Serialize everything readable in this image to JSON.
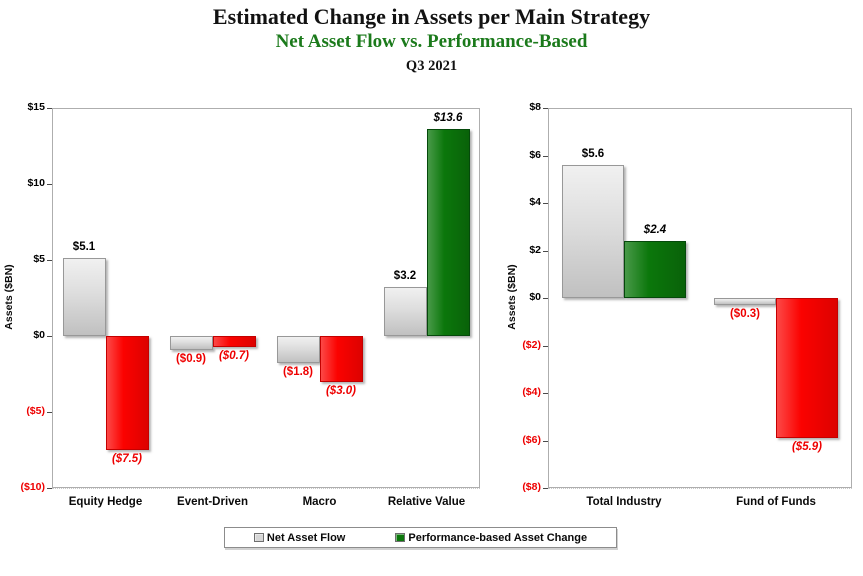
{
  "header": {
    "title": "Estimated Change in Assets per Main Strategy",
    "subtitle": "Net Asset Flow vs. Performance-Based",
    "period": "Q3 2021"
  },
  "colors": {
    "net_flow_bar": "#d6d6d6",
    "perf_positive_bar": "#0b770b",
    "perf_negative_bar": "#fb0200",
    "positive_label": "#000000",
    "negative_label": "#ee0000",
    "subtitle_green": "#1b7a1b"
  },
  "legend": {
    "items": [
      {
        "label": "Net Asset Flow",
        "swatch_icon": "net-asset-flow-swatch-icon"
      },
      {
        "label": "Performance-based Asset Change",
        "swatch_icon": "performance-swatch-icon"
      }
    ]
  },
  "chart_data": [
    {
      "type": "bar",
      "title": "",
      "xlabel": "",
      "ylabel": "Assets ($BN)",
      "ylim": [
        -10,
        15
      ],
      "ystep": 5,
      "ytick_labels": [
        "$15",
        "$10",
        "$5",
        "$0",
        "($5)",
        "($10)"
      ],
      "grid": true,
      "categories": [
        "Equity Hedge",
        "Event-Driven",
        "Macro",
        "Relative Value"
      ],
      "series": [
        {
          "name": "Net Asset Flow",
          "values": [
            5.1,
            -0.9,
            -1.8,
            3.2
          ],
          "labels": [
            "$5.1",
            "($0.9)",
            "($1.8)",
            "$3.2"
          ]
        },
        {
          "name": "Performance-based Asset Change",
          "values": [
            -7.5,
            -0.7,
            -3.0,
            13.6
          ],
          "labels": [
            "($7.5)",
            "($0.7)",
            "($3.0)",
            "$13.6"
          ]
        }
      ]
    },
    {
      "type": "bar",
      "title": "",
      "xlabel": "",
      "ylabel": "Assets ($BN)",
      "ylim": [
        -8,
        8
      ],
      "ystep": 2,
      "ytick_labels": [
        "$8",
        "$6",
        "$4",
        "$2",
        "$0",
        "($2)",
        "($4)",
        "($6)",
        "($8)"
      ],
      "grid": true,
      "categories": [
        "Total Industry",
        "Fund of Funds"
      ],
      "series": [
        {
          "name": "Net Asset Flow",
          "values": [
            5.6,
            -0.3
          ],
          "labels": [
            "$5.6",
            "($0.3)"
          ]
        },
        {
          "name": "Performance-based Asset Change",
          "values": [
            2.4,
            -5.9
          ],
          "labels": [
            "$2.4",
            "($5.9)"
          ]
        }
      ]
    }
  ]
}
